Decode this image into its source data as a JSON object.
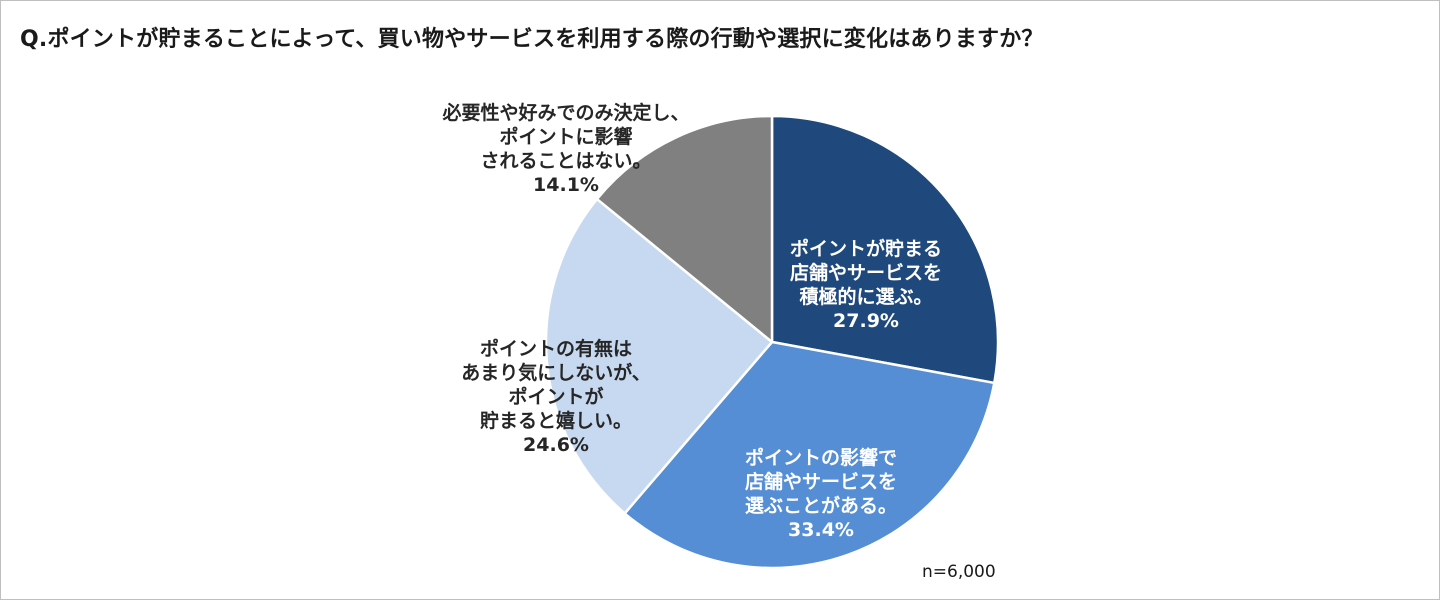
{
  "chart_data": {
    "type": "pie",
    "title": "Q.ポイントが貯まることによって、買い物やサービスを利用する際の行動や選択に変化はありますか？",
    "note": "n=6,000",
    "start_angle_deg": 0,
    "direction": "clockwise",
    "slices": [
      {
        "label": "ポイントが貯まる\n店舗やサービスを\n積極的に選ぶ。",
        "percent_label": "27.9%",
        "value": 27.9,
        "color": "#1f497d",
        "text_color": "#ffffff"
      },
      {
        "label": "ポイントの影響で\n店舗やサービスを\n選ぶことがある。",
        "percent_label": "33.4%",
        "value": 33.4,
        "color": "#558ed5",
        "text_color": "#ffffff"
      },
      {
        "label": "ポイントの有無は\nあまり気にしないが、\nポイントが\n貯まると嬉しい。",
        "percent_label": "24.6%",
        "value": 24.6,
        "color": "#c6d9f1",
        "text_color": "#262626"
      },
      {
        "label": "必要性や好みでのみ決定し、\nポイントに影響\nされることはない。",
        "percent_label": "14.1%",
        "value": 14.1,
        "color": "#808080",
        "text_color": "#262626"
      }
    ]
  }
}
